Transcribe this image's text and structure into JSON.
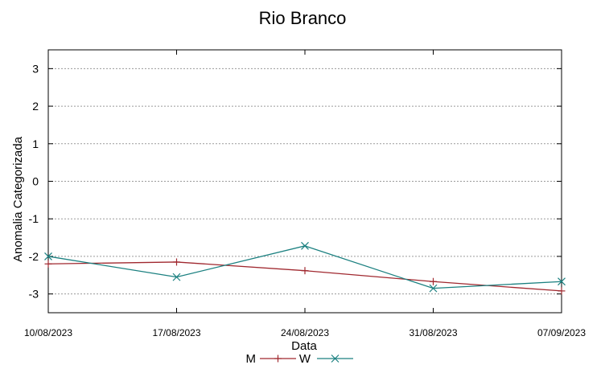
{
  "chart_data": {
    "type": "line",
    "title": "Rio Branco",
    "xlabel": "Data",
    "ylabel": "Anomalia Categorizada",
    "categories": [
      "10/08/2023",
      "17/08/2023",
      "24/08/2023",
      "31/08/2023",
      "07/09/2023"
    ],
    "y_ticks": [
      "3",
      "2",
      "1",
      "0",
      "-1",
      "-2",
      "-3"
    ],
    "ylim": [
      -3.5,
      3.5
    ],
    "grid": true,
    "legend_position": "bottom",
    "series": [
      {
        "name": "M",
        "color": "#a0282f",
        "marker": "plus",
        "values": [
          -2.2,
          -2.15,
          -2.38,
          -2.67,
          -2.92
        ]
      },
      {
        "name": "W",
        "color": "#1b8080",
        "marker": "cross",
        "values": [
          -2.0,
          -2.55,
          -1.72,
          -2.85,
          -2.67
        ]
      }
    ]
  }
}
